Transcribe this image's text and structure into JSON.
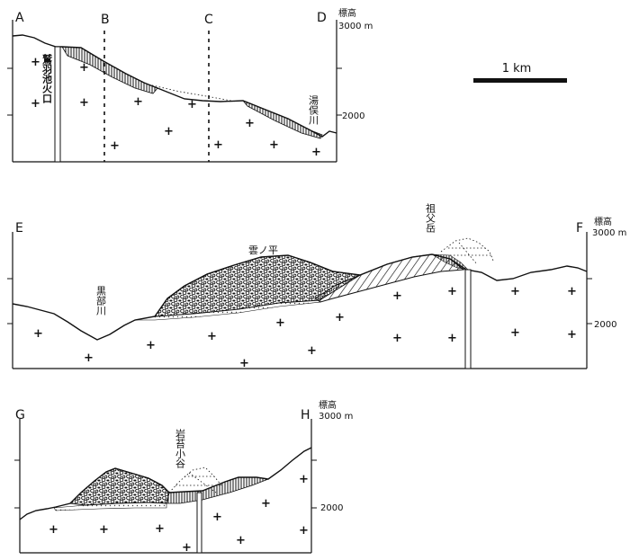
{
  "scale": {
    "label": "1 km"
  },
  "sections": {
    "ad": {
      "left": "A",
      "right": "D",
      "marker1": "B",
      "marker2": "C",
      "axis_title": "標高",
      "axis_top": "3000 m",
      "axis_mid": "2000",
      "vent": "鷲羽池火口",
      "river": "湯俣川"
    },
    "ef": {
      "left": "E",
      "right": "F",
      "axis_title": "標高",
      "axis_top": "3000 m",
      "axis_mid": "2000",
      "river": "黒部川",
      "plateau": "雲ノ平",
      "peak": "祖父岳"
    },
    "gh": {
      "left": "G",
      "right": "H",
      "axis_title": "標高",
      "axis_top": "3000 m",
      "axis_mid": "2000",
      "valley": "岩苔小谷"
    }
  }
}
